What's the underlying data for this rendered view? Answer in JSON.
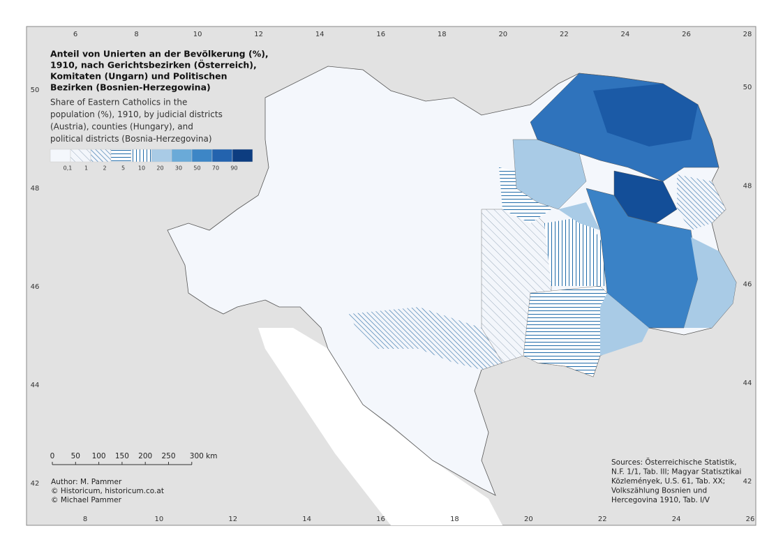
{
  "title_lines": [
    "Anteil von Unierten an der Bevölkerung (%),",
    "1910, nach Gerichtsbezirken (Österreich),",
    "Komitaten (Ungarn) und Politischen",
    "Bezirken (Bosnien-Herzegowina)"
  ],
  "subtitle_lines": [
    "Share of Eastern Catholics in the",
    "population (%), 1910, by judicial districts",
    "(Austria), counties (Hungary), and",
    "political districts (Bosnia-Herzegovina)"
  ],
  "legend_labels": [
    "0,1",
    "1",
    "2",
    "5",
    "10",
    "20",
    "30",
    "50",
    "70",
    "90"
  ],
  "top_ticks": [
    6,
    8,
    10,
    12,
    14,
    16,
    18,
    20,
    22,
    24,
    26,
    28
  ],
  "bottom_ticks": [
    8,
    10,
    12,
    14,
    16,
    18,
    20,
    22,
    24,
    26
  ],
  "left_ticks": [
    42,
    44,
    46,
    48,
    50
  ],
  "right_ticks": [
    42,
    44,
    46,
    48,
    50
  ],
  "scale_bar_labels": [
    "0",
    "50",
    "100",
    "150",
    "200",
    "250",
    "300 km"
  ],
  "credits": [
    "Author: M. Pammer",
    "© Historicum, historicum.co.at",
    "© Michael Pammer"
  ],
  "sources": [
    "Sources: Österreichische Statistik,",
    "N.F. 1/1, Tab. III; Magyar Statisztikai",
    "Közlemények, U.S. 61, Tab. XX;",
    "Volkszählung Bosnien und",
    "Hercegovina 1910, Tab. I/V"
  ]
}
